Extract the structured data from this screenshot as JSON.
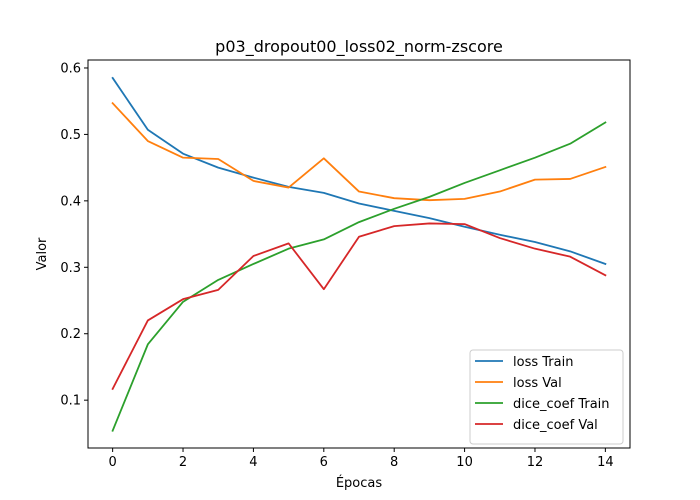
{
  "chart_data": {
    "type": "line",
    "title": "p03_dropout00_loss02_norm-zscore",
    "xlabel": "Épocas",
    "ylabel": "Valor",
    "xlim": [
      -0.7,
      14.7
    ],
    "ylim": [
      0.028,
      0.612
    ],
    "xticks": [
      0,
      2,
      4,
      6,
      8,
      10,
      12,
      14
    ],
    "yticks": [
      0.1,
      0.2,
      0.3,
      0.4,
      0.5,
      0.6
    ],
    "grid": false,
    "legend_position": "lower-right",
    "x": [
      0,
      1,
      2,
      3,
      4,
      5,
      6,
      7,
      8,
      9,
      10,
      11,
      12,
      13,
      14
    ],
    "series": [
      {
        "name": "loss Train",
        "color": "#1f77b4",
        "values": [
          0.585,
          0.507,
          0.471,
          0.45,
          0.435,
          0.421,
          0.412,
          0.396,
          0.385,
          0.374,
          0.361,
          0.349,
          0.338,
          0.324,
          0.305
        ]
      },
      {
        "name": "loss Val",
        "color": "#ff7f0e",
        "values": [
          0.547,
          0.49,
          0.465,
          0.463,
          0.43,
          0.42,
          0.464,
          0.414,
          0.404,
          0.401,
          0.403,
          0.414,
          0.432,
          0.433,
          0.451
        ]
      },
      {
        "name": "dice_coef Train",
        "color": "#2ca02c",
        "values": [
          0.054,
          0.184,
          0.248,
          0.281,
          0.305,
          0.328,
          0.342,
          0.368,
          0.388,
          0.406,
          0.427,
          0.446,
          0.465,
          0.486,
          0.518
        ]
      },
      {
        "name": "dice_coef Val",
        "color": "#d62728",
        "values": [
          0.117,
          0.22,
          0.252,
          0.266,
          0.317,
          0.336,
          0.267,
          0.346,
          0.362,
          0.366,
          0.365,
          0.344,
          0.328,
          0.316,
          0.288
        ]
      }
    ]
  }
}
